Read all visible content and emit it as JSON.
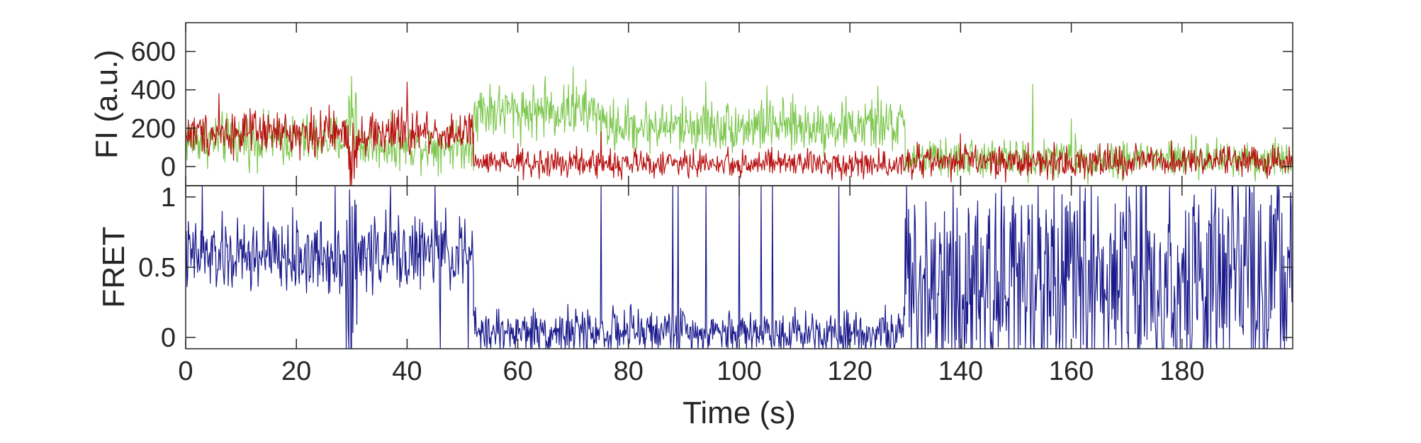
{
  "chart_data": [
    {
      "type": "line",
      "ylabel": "FI (a.u.)",
      "ylim": [
        -100,
        750
      ],
      "xlim": [
        0,
        200
      ],
      "yticks": [
        0,
        200,
        400,
        600
      ],
      "ytick_labels": [
        "0",
        "200",
        "400",
        "600"
      ],
      "grid": false,
      "legend": "none",
      "series": [
        {
          "color": "#7ec850",
          "segments": [
            {
              "x0": 0,
              "x1": 29,
              "mean": 140,
              "noise": 65,
              "spikes": []
            },
            {
              "x0": 29,
              "x1": 31,
              "mean": 250,
              "noise": 130,
              "spikes": [
                [
                  30,
                  470
                ]
              ]
            },
            {
              "x0": 31,
              "x1": 52,
              "mean": 110,
              "noise": 60,
              "spikes": []
            },
            {
              "x0": 52,
              "x1": 75,
              "mean": 290,
              "noise": 70,
              "spikes": [
                [
                  55,
                  430
                ],
                [
                  65,
                  470
                ],
                [
                  70,
                  520
                ],
                [
                  75,
                  610
                ],
                [
                  81,
                  540
                ]
              ]
            },
            {
              "x0": 75,
              "x1": 130,
              "mean": 210,
              "noise": 65,
              "spikes": [
                [
                  94,
                  440
                ],
                [
                  105,
                  420
                ],
                [
                  125,
                  420
                ]
              ]
            },
            {
              "x0": 130,
              "x1": 200,
              "mean": 40,
              "noise": 50,
              "spikes": [
                [
                  153,
                  430
                ],
                [
                  160,
                  250
                ]
              ]
            }
          ]
        },
        {
          "color": "#b81010",
          "segments": [
            {
              "x0": 0,
              "x1": 29,
              "mean": 175,
              "noise": 55,
              "spikes": [
                [
                  6,
                  380
                ]
              ]
            },
            {
              "x0": 29,
              "x1": 31,
              "mean": 90,
              "noise": 110,
              "spikes": []
            },
            {
              "x0": 31,
              "x1": 52,
              "mean": 175,
              "noise": 60,
              "spikes": [
                [
                  40,
                  440
                ]
              ]
            },
            {
              "x0": 52,
              "x1": 130,
              "mean": 15,
              "noise": 35,
              "spikes": [
                [
                  60,
                  120
                ],
                [
                  75,
                  180
                ]
              ]
            },
            {
              "x0": 130,
              "x1": 200,
              "mean": 25,
              "noise": 40,
              "spikes": [
                [
                  140,
                  170
                ]
              ]
            }
          ]
        }
      ]
    },
    {
      "type": "line",
      "xlabel": "Time (s)",
      "ylabel": "FRET",
      "xlim": [
        0,
        200
      ],
      "ylim": [
        -0.08,
        1.08
      ],
      "xticks": [
        0,
        20,
        40,
        60,
        80,
        100,
        120,
        140,
        160,
        180
      ],
      "xtick_labels": [
        "0",
        "20",
        "40",
        "60",
        "80",
        "100",
        "120",
        "140",
        "160",
        "180"
      ],
      "yticks": [
        0,
        0.5,
        1
      ],
      "ytick_labels": [
        "0",
        "0.5",
        "1"
      ],
      "grid": false,
      "legend": "none",
      "series": [
        {
          "color": "#1a1a8c",
          "segments": [
            {
              "x0": 0,
              "x1": 29,
              "mean": 0.57,
              "noise": 0.13,
              "spikes": [
                [
                  3,
                  1.08
                ],
                [
                  14,
                  1.08
                ],
                [
                  27,
                  1.08
                ]
              ]
            },
            {
              "x0": 29,
              "x1": 31,
              "mean": 0.35,
              "noise": 0.45,
              "spikes": [
                [
                  30,
                  -0.08
                ],
                [
                  31,
                  -0.08
                ]
              ]
            },
            {
              "x0": 31,
              "x1": 52,
              "mean": 0.6,
              "noise": 0.13,
              "spikes": [
                [
                  37,
                  1.08
                ],
                [
                  45,
                  1.08
                ],
                [
                  46,
                  -0.08
                ],
                [
                  51,
                  -0.08
                ]
              ]
            },
            {
              "x0": 52,
              "x1": 130,
              "mean": 0.04,
              "noise": 0.08,
              "spikes": [
                [
                  75,
                  1.08
                ],
                [
                  88,
                  1.08
                ],
                [
                  89,
                  1.08
                ],
                [
                  94,
                  1.08
                ],
                [
                  100,
                  1.08
                ],
                [
                  104,
                  1.08
                ],
                [
                  106,
                  1.08
                ],
                [
                  118,
                  1.08
                ]
              ]
            },
            {
              "x0": 130,
              "x1": 200,
              "mean": 0.4,
              "noise": 0.42,
              "spikes": []
            }
          ]
        }
      ]
    }
  ]
}
